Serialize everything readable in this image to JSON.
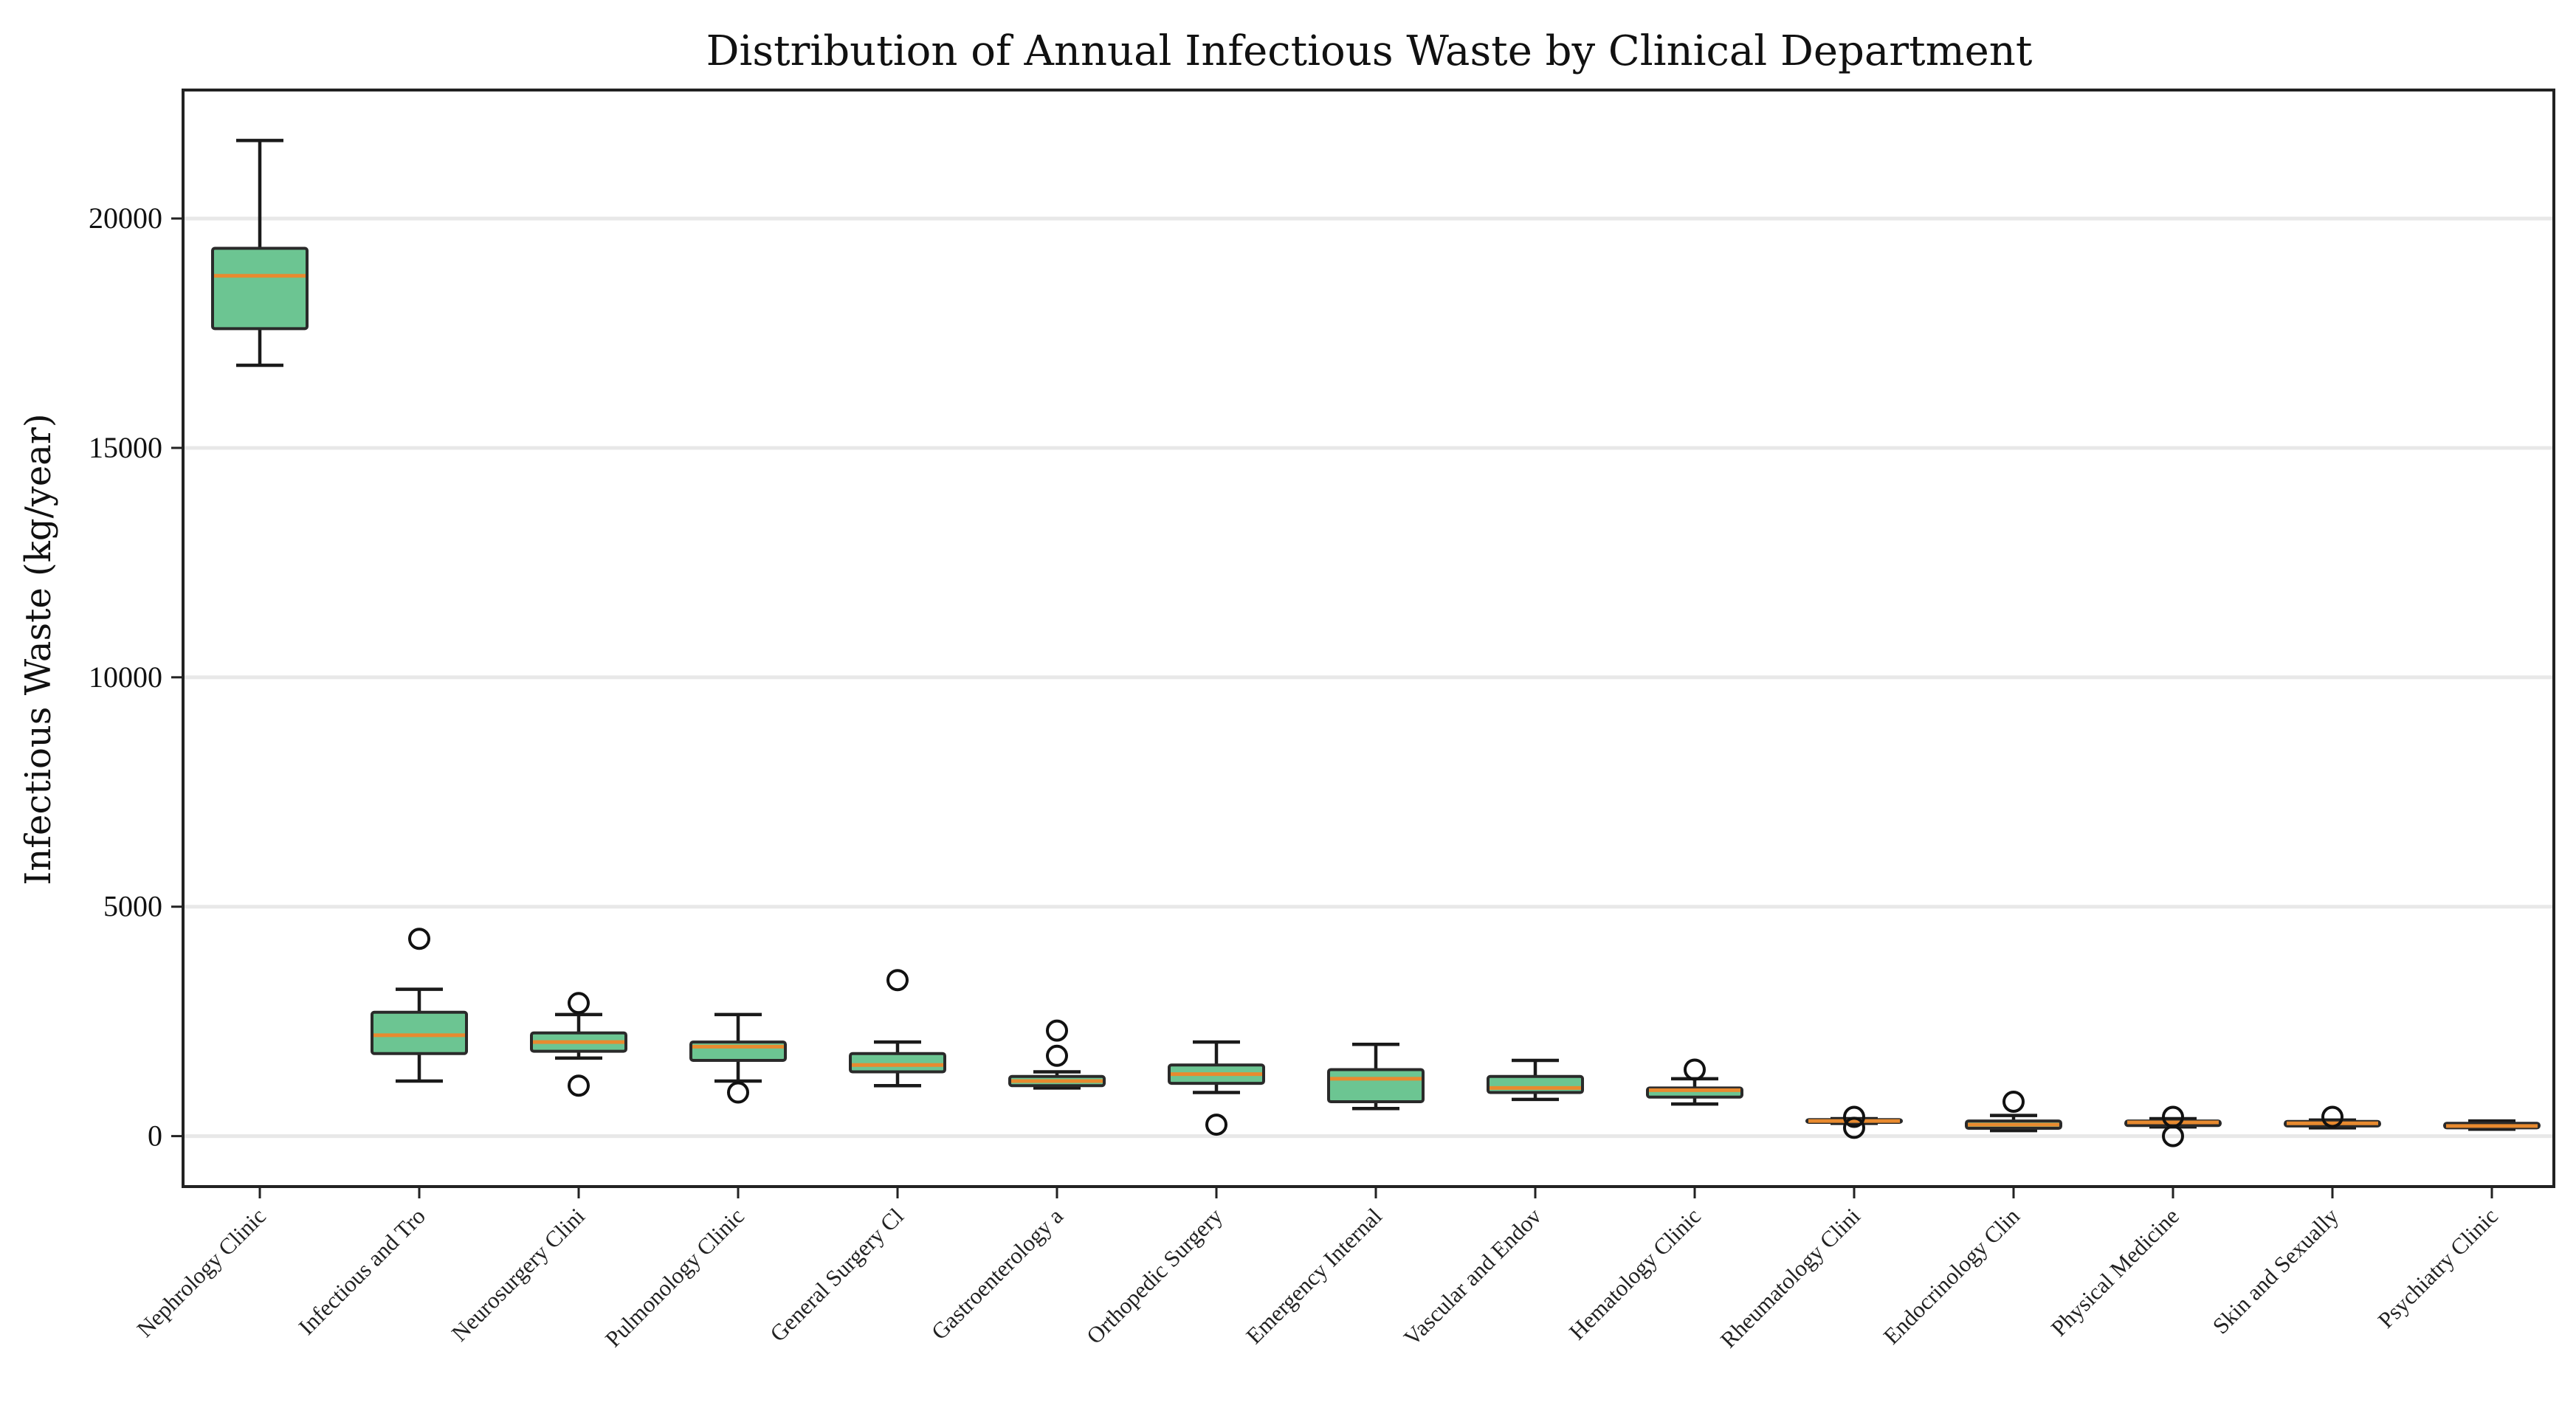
{
  "chart_data": {
    "type": "box",
    "title": "Distribution of Annual Infectious Waste by Clinical Department",
    "xlabel": "",
    "ylabel": "Infectious Waste (kg/year)",
    "ylim": [
      -1100,
      22800
    ],
    "yticks": [
      0,
      5000,
      10000,
      15000,
      20000
    ],
    "ytick_labels": [
      "0",
      "5000",
      "10000",
      "15000",
      "20000"
    ],
    "grid": "horizontal",
    "colors": {
      "box_fill": "#6cc592",
      "median": "#e88a2f",
      "frame": "#222222",
      "grid": "#e8e8e8"
    },
    "categories": [
      "Nephrology Clinic",
      "Infectious and Tro",
      "Neurosurgery Clini",
      "Pulmonology Clinic",
      "General Surgery Cl",
      "Gastroenterology a",
      "Orthopedic Surgery",
      "Emergency Internal",
      "Vascular and Endov",
      "Hematology Clinic",
      "Rheumatology Clini",
      "Endocrinology Clin",
      "Physical Medicine",
      "Skin and Sexually",
      "Psychiatry Clinic"
    ],
    "boxes": [
      {
        "whislo": 16800,
        "q1": 17600,
        "med": 18750,
        "q3": 19350,
        "whishi": 21700,
        "fliers": []
      },
      {
        "whislo": 1200,
        "q1": 1800,
        "med": 2200,
        "q3": 2700,
        "whishi": 3200,
        "fliers": [
          4300
        ]
      },
      {
        "whislo": 1700,
        "q1": 1850,
        "med": 2050,
        "q3": 2250,
        "whishi": 2650,
        "fliers": [
          2900,
          1100
        ]
      },
      {
        "whislo": 1200,
        "q1": 1650,
        "med": 1950,
        "q3": 2050,
        "whishi": 2650,
        "fliers": [
          950
        ]
      },
      {
        "whislo": 1100,
        "q1": 1400,
        "med": 1550,
        "q3": 1800,
        "whishi": 2050,
        "fliers": [
          3400
        ]
      },
      {
        "whislo": 1050,
        "q1": 1100,
        "med": 1200,
        "q3": 1300,
        "whishi": 1400,
        "fliers": [
          2300,
          1750
        ]
      },
      {
        "whislo": 950,
        "q1": 1150,
        "med": 1350,
        "q3": 1550,
        "whishi": 2050,
        "fliers": [
          250
        ]
      },
      {
        "whislo": 600,
        "q1": 750,
        "med": 1250,
        "q3": 1450,
        "whishi": 2000,
        "fliers": []
      },
      {
        "whislo": 800,
        "q1": 950,
        "med": 1050,
        "q3": 1300,
        "whishi": 1650,
        "fliers": []
      },
      {
        "whislo": 700,
        "q1": 850,
        "med": 1000,
        "q3": 1050,
        "whishi": 1250,
        "fliers": [
          1450
        ]
      },
      {
        "whislo": 280,
        "q1": 300,
        "med": 330,
        "q3": 360,
        "whishi": 380,
        "fliers": [
          420,
          180
        ]
      },
      {
        "whislo": 120,
        "q1": 170,
        "med": 250,
        "q3": 330,
        "whishi": 450,
        "fliers": [
          750
        ]
      },
      {
        "whislo": 200,
        "q1": 230,
        "med": 300,
        "q3": 330,
        "whishi": 380,
        "fliers": [
          420,
          0
        ]
      },
      {
        "whislo": 180,
        "q1": 220,
        "med": 280,
        "q3": 320,
        "whishi": 350,
        "fliers": [
          420
        ]
      },
      {
        "whislo": 150,
        "q1": 180,
        "med": 220,
        "q3": 280,
        "whishi": 330,
        "fliers": []
      }
    ]
  }
}
